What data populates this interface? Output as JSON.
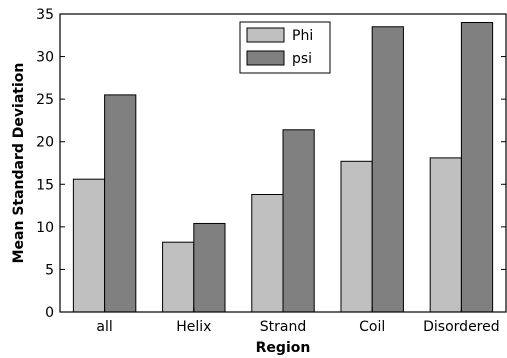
{
  "chart_data": {
    "type": "bar",
    "title": "",
    "xlabel": "Region",
    "ylabel": "Mean Standard Deviation",
    "categories": [
      "all",
      "Helix",
      "Strand",
      "Coil",
      "Disordered"
    ],
    "series": [
      {
        "name": "Phi",
        "values": [
          15.6,
          8.2,
          13.8,
          17.7,
          18.1
        ],
        "color": "#c0c0c0"
      },
      {
        "name": "psi",
        "values": [
          25.5,
          10.4,
          21.4,
          33.5,
          34.0
        ],
        "color": "#808080"
      }
    ],
    "ylim": [
      0,
      35
    ],
    "yticks": [
      0,
      5,
      10,
      15,
      20,
      25,
      30,
      35
    ],
    "grid": false,
    "legend_position": "top-center"
  }
}
